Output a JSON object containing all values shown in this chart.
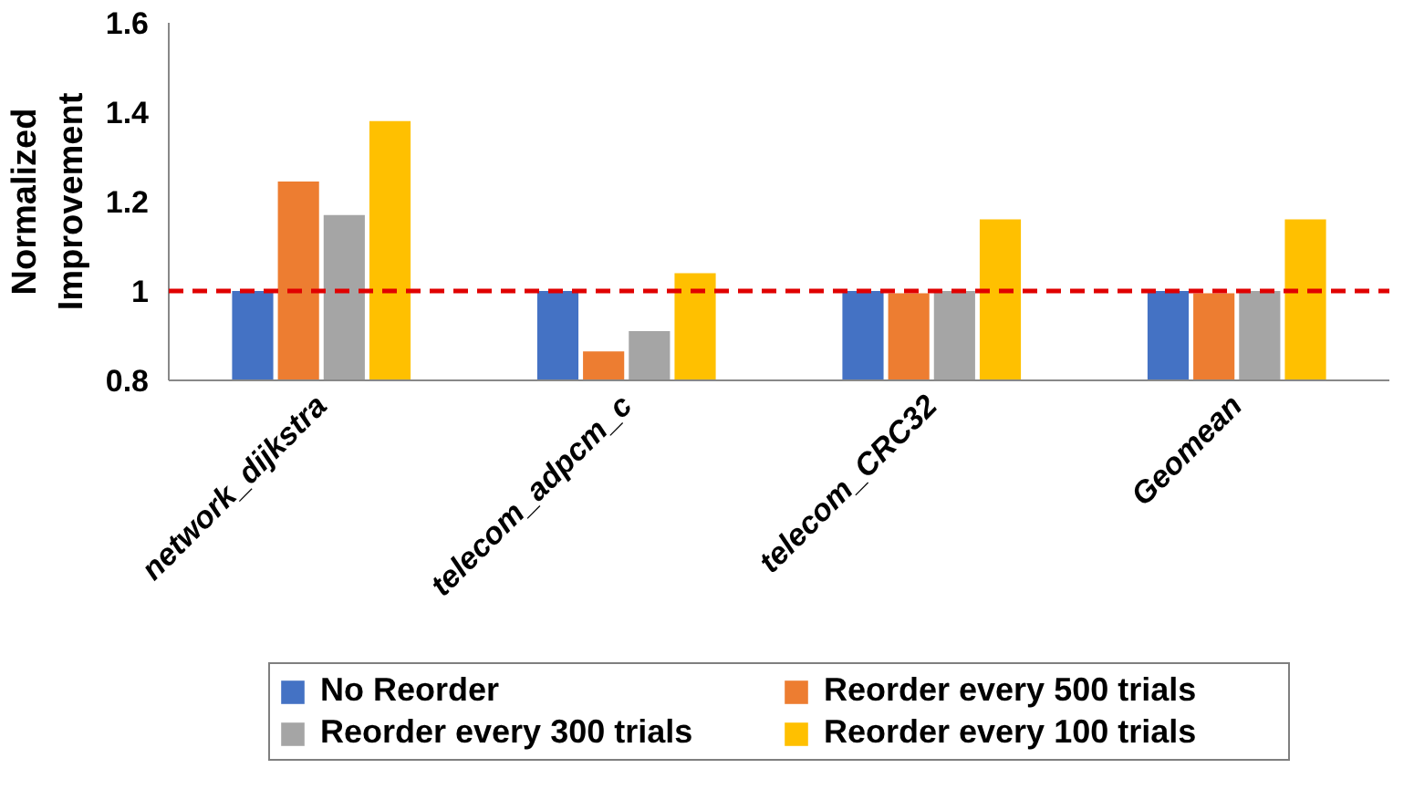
{
  "chart_data": {
    "type": "bar",
    "ylabel": "Normalized Improvement",
    "categories": [
      "network_dijkstra",
      "telecom_adpcm_c",
      "telecom_CRC32",
      "Geomean"
    ],
    "series": [
      {
        "name": "No Reorder",
        "color": "#4472c4",
        "values": [
          1.0,
          1.0,
          1.0,
          1.0
        ]
      },
      {
        "name": "Reorder every 500 trials",
        "color": "#ed7d31",
        "values": [
          1.245,
          0.865,
          0.995,
          0.995
        ]
      },
      {
        "name": "Reorder every 300 trials",
        "color": "#a5a5a5",
        "values": [
          1.17,
          0.91,
          1.0,
          1.0
        ]
      },
      {
        "name": "Reorder every 100 trials",
        "color": "#ffc000",
        "values": [
          1.38,
          1.04,
          1.16,
          1.16
        ]
      }
    ],
    "ylim": [
      0.8,
      1.6
    ],
    "yticks": [
      0.8,
      1,
      1.2,
      1.4,
      1.6
    ],
    "grid": false,
    "legend": "bottom",
    "ref_lines": [
      {
        "axis": "y",
        "value": 1,
        "color": "#e00000",
        "line_style": "dashed"
      }
    ]
  }
}
